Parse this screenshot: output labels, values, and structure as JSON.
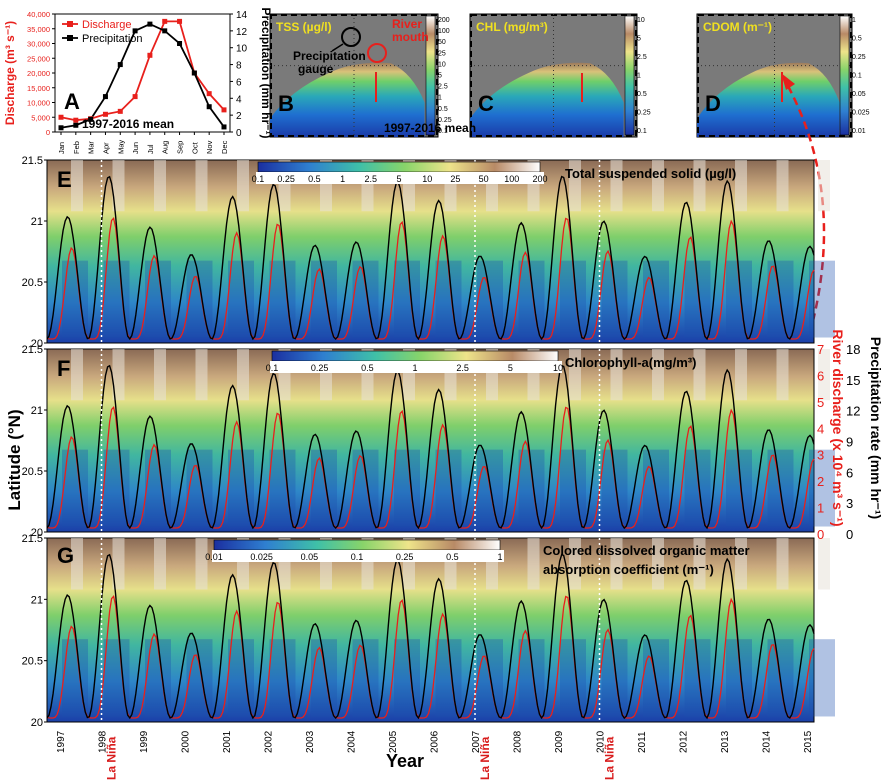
{
  "panelA": {
    "letter": "A",
    "legend_discharge": "Discharge",
    "legend_precip": "Precipitation",
    "ylabel_left": "Discharge (m³ s⁻¹)",
    "ylabel_right": "Precipitation (mm hr⁻¹)",
    "mean_label": "1997-2016 mean",
    "months": [
      "Jan",
      "Feb",
      "Mar",
      "Apr",
      "May",
      "Jun",
      "Jul",
      "Aug",
      "Sep",
      "Oct",
      "Nov",
      "Dec"
    ],
    "left_ticks": [
      "0",
      "5,000",
      "10,000",
      "15,000",
      "20,000",
      "25,000",
      "30,000",
      "35,000",
      "40,000"
    ],
    "right_ticks": [
      "0",
      "2",
      "4",
      "6",
      "8",
      "10",
      "12",
      "14"
    ]
  },
  "maps": [
    {
      "letter": "B",
      "title": "TSS (µg/l)",
      "scale": [
        "200",
        "100",
        "50",
        "25",
        "10",
        "5",
        "2.5",
        "1",
        "0.5",
        "0.25",
        "0.1"
      ]
    },
    {
      "letter": "C",
      "title": "CHL (mg/m³)",
      "scale": [
        "10",
        "5",
        "2.5",
        "1",
        "0.5",
        "0.25",
        "0.1"
      ]
    },
    {
      "letter": "D",
      "title": "CDOM (m⁻¹)",
      "scale": [
        "1",
        "0.5",
        "0.25",
        "0.1",
        "0.05",
        "0.025",
        "0.01"
      ]
    }
  ],
  "mapB_labels": {
    "river_mouth": "River mouth",
    "precip_gauge": "Precipitation gauge"
  },
  "mapC_mean": "1997-2016 mean",
  "hov": [
    {
      "letter": "E",
      "title": "Total suspended solid (µg/l)",
      "cbar": [
        "0.1",
        "0.25",
        "0.5",
        "1",
        "2.5",
        "5",
        "10",
        "25",
        "50",
        "100",
        "200"
      ]
    },
    {
      "letter": "F",
      "title": "Chlorophyll-a(mg/m³)",
      "cbar": [
        "0.1",
        "0.25",
        "0.5",
        "1",
        "2.5",
        "5",
        "10"
      ]
    },
    {
      "letter": "G",
      "title": "Colored dissolved organic matter absorption coefficient (m⁻¹)",
      "cbar": [
        "0.01",
        "0.025",
        "0.05",
        "0.1",
        "0.25",
        "0.5",
        "1"
      ]
    }
  ],
  "lat_ticks": [
    "20",
    "20.5",
    "21",
    "21.5"
  ],
  "ylabel_lat": "Latitude (°N)",
  "xlabel": "Year",
  "years": [
    "1997",
    "1998",
    "1999",
    "2000",
    "2001",
    "2002",
    "2003",
    "2004",
    "2005",
    "2006",
    "2007",
    "2008",
    "2009",
    "2010",
    "2011",
    "2012",
    "2013",
    "2014",
    "2015"
  ],
  "la_nina": {
    "label": "La Niña",
    "years": [
      "1998",
      "2007",
      "2010"
    ]
  },
  "right_axis_discharge": {
    "label": "River discharge (x 10⁴ m³ s⁻¹)",
    "ticks": [
      "0",
      "1",
      "2",
      "3",
      "4",
      "5",
      "6",
      "7"
    ]
  },
  "right_axis_precip": {
    "label": "Precipitation rate (mm hr⁻¹)",
    "ticks": [
      "0",
      "3",
      "6",
      "9",
      "12",
      "15",
      "18"
    ]
  },
  "colors": {
    "discharge": "#e8201c",
    "precip": "#000000",
    "la_nina": "#d81b1b"
  },
  "chart_data": {
    "type": "line",
    "title": "",
    "x": [
      "Jan",
      "Feb",
      "Mar",
      "Apr",
      "May",
      "Jun",
      "Jul",
      "Aug",
      "Sep",
      "Oct",
      "Nov",
      "Dec"
    ],
    "xlabel": "",
    "ylabel": "Discharge (m³ s⁻¹)",
    "ylim": [
      0,
      40000
    ],
    "y2label": "Precipitation (mm hr⁻¹)",
    "y2lim": [
      0,
      14
    ],
    "series": [
      {
        "name": "Discharge",
        "axis": "left",
        "values": [
          5000,
          4000,
          4500,
          6000,
          7000,
          12000,
          26000,
          37500,
          37500,
          20000,
          13000,
          7500
        ]
      },
      {
        "name": "Precipitation",
        "axis": "right",
        "values": [
          0.5,
          0.8,
          1.5,
          4.2,
          8.0,
          12.0,
          12.8,
          12.0,
          10.5,
          7.0,
          3.0,
          0.6
        ]
      }
    ],
    "legend": "top-left"
  }
}
